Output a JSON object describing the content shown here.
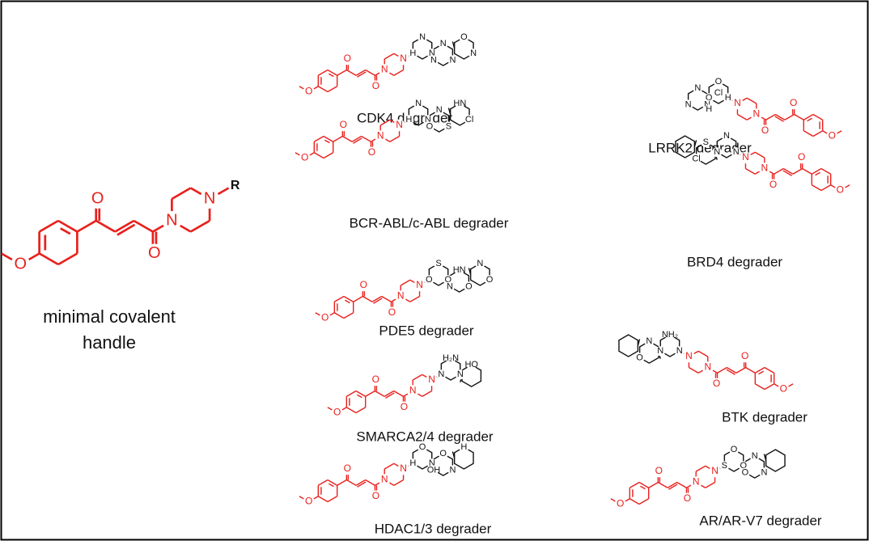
{
  "handle": {
    "lines": [
      "minimal covalent",
      "handle"
    ],
    "atoms": [
      "O",
      "O",
      "O",
      "N",
      "N"
    ],
    "r": "R"
  },
  "molecules": [
    {
      "label": "CDK4 degrader",
      "atoms": [
        "O",
        "O",
        "O",
        "N",
        "N"
      ],
      "extra": [
        "N",
        "N",
        "H",
        "N",
        "N",
        "N",
        "O",
        "N"
      ]
    },
    {
      "label": "BCR-ABL/c-ABL degrader",
      "atoms": [
        "O",
        "O",
        "O",
        "N",
        "N"
      ],
      "extra": [
        "N",
        "N",
        "H",
        "N",
        "S",
        "O",
        "HN",
        "Cl"
      ]
    },
    {
      "label": "PDE5 degrader",
      "atoms": [
        "O",
        "O",
        "O",
        "N",
        "N"
      ],
      "extra": [
        "S",
        "O",
        "O",
        "HN",
        "O",
        "N",
        "N",
        "O"
      ]
    },
    {
      "label": "SMARCA2/4 degrader",
      "atoms": [
        "O",
        "O",
        "O",
        "N",
        "N"
      ],
      "extra": [
        "H₂N",
        "N",
        "N",
        "HO"
      ]
    },
    {
      "label": "HDAC1/3 degrader",
      "atoms": [
        "O",
        "O",
        "O",
        "N",
        "N"
      ],
      "extra": [
        "O",
        "N",
        "H",
        "O",
        "N",
        "OH",
        "H"
      ]
    },
    {
      "label": "LRRK2 degrader",
      "atoms": [
        "O",
        "O",
        "O",
        "N",
        "N"
      ],
      "extra": [
        "O",
        "O",
        "H",
        "N",
        "N",
        "N",
        "Cl",
        "H"
      ]
    },
    {
      "label": "BRD4 degrader",
      "atoms": [
        "O",
        "O",
        "O",
        "N",
        "N"
      ],
      "extra": [
        "N",
        "N",
        "N",
        "S",
        "Cl"
      ]
    },
    {
      "label": "BTK degrader",
      "atoms": [
        "O",
        "O",
        "O",
        "N",
        "N"
      ],
      "extra": [
        "NH₂",
        "N",
        "N",
        "N",
        "O"
      ]
    },
    {
      "label": "AR/AR-V7 degrader",
      "atoms": [
        "O",
        "O",
        "O",
        "N",
        "N"
      ],
      "extra": [
        "O",
        "O",
        "S",
        "N",
        "N",
        "O"
      ]
    }
  ]
}
